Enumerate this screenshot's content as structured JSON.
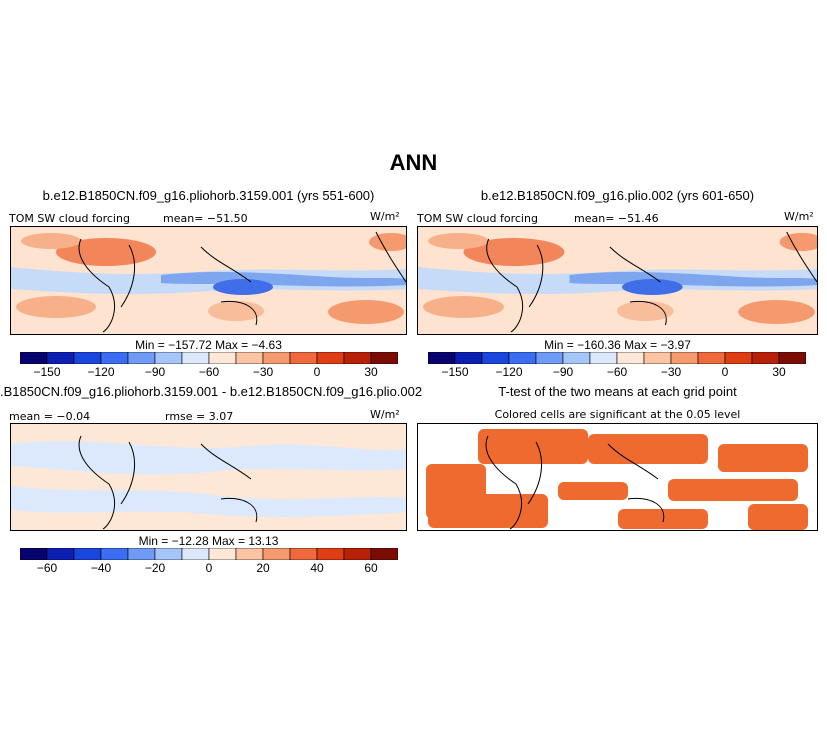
{
  "figure_title": "ANN",
  "panels": {
    "p1": {
      "title": "b.e12.B1850CN.f09_g16.pliohorb.3159.001 (yrs 551-600)",
      "var_label": "TOM SW cloud forcing",
      "mean_text": "mean= −51.50",
      "units": "W/m²",
      "stats": "Min = −157.72  Max = −4.63"
    },
    "p2": {
      "title": "b.e12.B1850CN.f09_g16.plio.002 (yrs 601-650)",
      "var_label": "TOM SW cloud forcing",
      "mean_text": "mean= −51.46",
      "units": "W/m²",
      "stats": "Min = −160.36  Max = −3.97"
    },
    "p3": {
      "title": ".B1850CN.f09_g16.pliohorb.3159.001 - b.e12.B1850CN.f09_g16.plio.002",
      "mean_text": "mean =  −0.04",
      "rmse_text": "rmse =    3.07",
      "units": "W/m²",
      "stats": "Min = −12.28  Max =  13.13"
    },
    "p4": {
      "title": "T-test of the two means at each grid point",
      "subtitle": "Colored cells are significant at the 0.05 level"
    }
  },
  "colorbar_colors": [
    "#08036e",
    "#0c1fb3",
    "#1a46e0",
    "#3b6ef2",
    "#6f9af5",
    "#a6c6fa",
    "#dce9fc",
    "#fde7d6",
    "#fbc4a2",
    "#f59a6e",
    "#ee6a3c",
    "#df3e14",
    "#b82008",
    "#7a0c04"
  ],
  "chart_data": [
    {
      "type": "heatmap",
      "title": "b.e12.B1850CN.f09_g16.pliohorb.3159.001 (yrs 551-600)",
      "variable": "TOM SW cloud forcing",
      "units": "W/m2",
      "mean": -51.5,
      "min": -157.72,
      "max": -4.63,
      "colorbar_ticks": [
        "−150",
        "−120",
        "−90",
        "−60",
        "−30",
        "0",
        "30"
      ],
      "colorbar_range": [
        -165,
        45
      ]
    },
    {
      "type": "heatmap",
      "title": "b.e12.B1850CN.f09_g16.plio.002 (yrs 601-650)",
      "variable": "TOM SW cloud forcing",
      "units": "W/m2",
      "mean": -51.46,
      "min": -160.36,
      "max": -3.97,
      "colorbar_ticks": [
        "−150",
        "−120",
        "−90",
        "−60",
        "−30",
        "0",
        "30"
      ],
      "colorbar_range": [
        -165,
        45
      ]
    },
    {
      "type": "heatmap",
      "title": ".B1850CN.f09_g16.pliohorb.3159.001 - b.e12.B1850CN.f09_g16.plio.002",
      "units": "W/m2",
      "mean": -0.04,
      "rmse": 3.07,
      "min": -12.28,
      "max": 13.13,
      "colorbar_ticks": [
        "−60",
        "−40",
        "−20",
        "0",
        "20",
        "40",
        "60"
      ],
      "colorbar_range": [
        -70,
        70
      ]
    },
    {
      "type": "heatmap",
      "title": "T-test of the two means at each grid point",
      "subtitle": "Colored cells are significant at the 0.05 level",
      "significance_level": 0.05
    }
  ]
}
